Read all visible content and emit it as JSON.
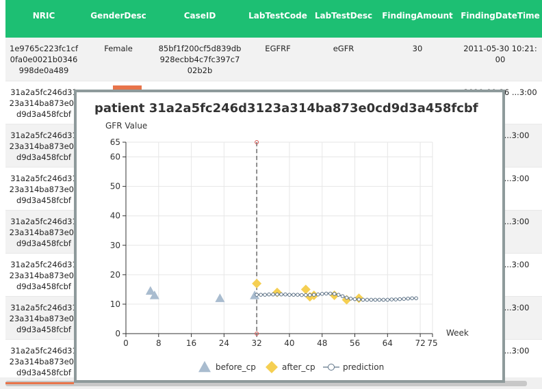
{
  "table": {
    "headers": [
      "NRIC",
      "GenderDesc",
      "CaseID",
      "LabTestCode",
      "LabTestDesc",
      "FindingAmount",
      "FindingDateTime"
    ],
    "rows": [
      [
        "1e9765c223fc1cf0fa0e0021b0346998de0a489",
        "Female",
        "85bf1f200cf5d839db928ecbb4c7fc397c702b2b",
        "EGFRF",
        "eGFR",
        "30",
        "2011-05-30 10:21:00"
      ],
      [
        "31a2a5fc246d3123a314ba873e0cd9d3a458fcbf",
        "",
        "",
        "",
        "",
        "",
        "2010-09-26 ...3:00"
      ],
      [
        "31a2a5fc246d3123a314ba873e0cd9d3a458fcbf",
        "",
        "",
        "",
        "",
        "",
        "...09-26 ...3:00"
      ],
      [
        "31a2a5fc246d3123a314ba873e0cd9d3a458fcbf",
        "",
        "",
        "",
        "",
        "",
        "...09-26 ...3:00"
      ],
      [
        "31a2a5fc246d3123a314ba873e0cd9d3a458fcbf",
        "",
        "",
        "",
        "",
        "",
        "...09-26 ...3:00"
      ],
      [
        "31a2a5fc246d3123a314ba873e0cd9d3a458fcbf",
        "",
        "",
        "",
        "",
        "",
        "...09-26 ...3:00"
      ],
      [
        "31a2a5fc246d3123a314ba873e0cd9d3a458fcbf",
        "",
        "",
        "",
        "",
        "",
        "...09-26 ...3:00"
      ],
      [
        "31a2a5fc246d3123a314ba873e0cd9d3a458fcbf",
        "",
        "",
        "",
        "",
        "",
        "...09-26 ...3:00"
      ]
    ]
  },
  "modal": {
    "title": "patient 31a2a5fc246d3123a314ba873e0cd9d3a458fcbf"
  },
  "colors": {
    "header_green": "#1dbf73",
    "before_cp": "#a9bccf",
    "after_cp": "#f5cf52",
    "prediction": "#5e7387",
    "cp_line": "#555555",
    "cp_marker": "#d9534f"
  },
  "chart_data": {
    "type": "scatter",
    "title": "patient 31a2a5fc246d3123a314ba873e0cd9d3a458fcbf",
    "ylabel": "GFR Value",
    "xlabel": "Week",
    "xlim": [
      0,
      75
    ],
    "ylim": [
      0,
      65
    ],
    "x_ticks": [
      0,
      8,
      16,
      24,
      32,
      40,
      48,
      56,
      64,
      72,
      75
    ],
    "y_ticks": [
      0,
      10,
      20,
      30,
      40,
      50,
      60,
      65
    ],
    "change_point": 32,
    "legend_position": "bottom",
    "grid": true,
    "series": [
      {
        "name": "before_cp",
        "marker": "triangle",
        "x": [
          6,
          7,
          23,
          31.5
        ],
        "y": [
          14.5,
          13,
          12,
          13
        ]
      },
      {
        "name": "after_cp",
        "marker": "diamond",
        "x": [
          32,
          37,
          44,
          45,
          46,
          51,
          54,
          57
        ],
        "y": [
          17,
          14,
          15,
          12.5,
          13,
          13,
          11.5,
          12
        ]
      },
      {
        "name": "prediction",
        "marker": "line-circle",
        "x": [
          32,
          33,
          34,
          35,
          36,
          37,
          38,
          39,
          40,
          41,
          42,
          43,
          44,
          45,
          46,
          47,
          48,
          49,
          50,
          51,
          52,
          53,
          54,
          55,
          56,
          57,
          58,
          59,
          60,
          61,
          62,
          63,
          64,
          65,
          66,
          67,
          68,
          69,
          70,
          71
        ],
        "y": [
          13.2,
          13.2,
          13.2,
          13.3,
          13.3,
          13.3,
          13.3,
          13.3,
          13.2,
          13.2,
          13.2,
          13.1,
          13.1,
          13.1,
          13.2,
          13.3,
          13.5,
          13.6,
          13.6,
          13.5,
          13.2,
          12.7,
          12.2,
          11.9,
          11.7,
          11.6,
          11.5,
          11.5,
          11.5,
          11.5,
          11.5,
          11.5,
          11.5,
          11.6,
          11.6,
          11.7,
          11.8,
          11.9,
          12.0,
          12.0
        ]
      }
    ]
  }
}
